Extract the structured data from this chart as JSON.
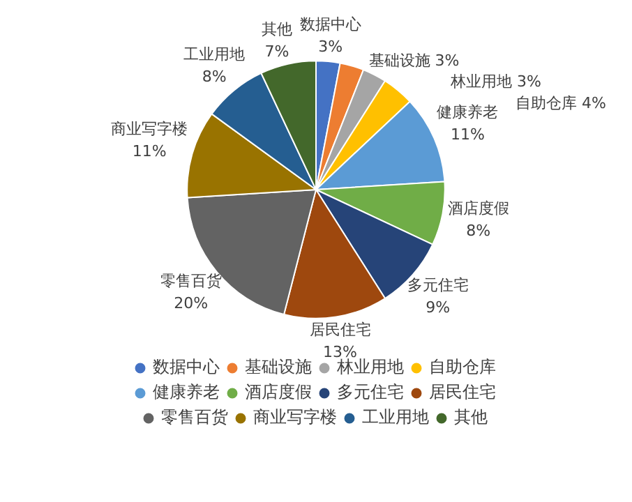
{
  "chart_data": {
    "type": "pie",
    "categories": [
      "数据中心",
      "基础设施",
      "林业用地",
      "自助仓库",
      "健康养老",
      "酒店度假",
      "多元住宅",
      "居民住宅",
      "零售百货",
      "商业写字楼",
      "工业用地",
      "其他"
    ],
    "values": [
      3,
      3,
      3,
      4,
      11,
      8,
      9,
      13,
      20,
      11,
      8,
      7
    ],
    "value_labels": [
      "3%",
      "3%",
      "3%",
      "4%",
      "11%",
      "8%",
      "9%",
      "13%",
      "20%",
      "11%",
      "8%",
      "7%"
    ],
    "colors": [
      "#4472c4",
      "#ed7d31",
      "#a5a5a5",
      "#ffc000",
      "#5b9bd5",
      "#70ad47",
      "#264478",
      "#9e480e",
      "#636363",
      "#997300",
      "#255e91",
      "#43682b"
    ],
    "legend": "bottom"
  }
}
